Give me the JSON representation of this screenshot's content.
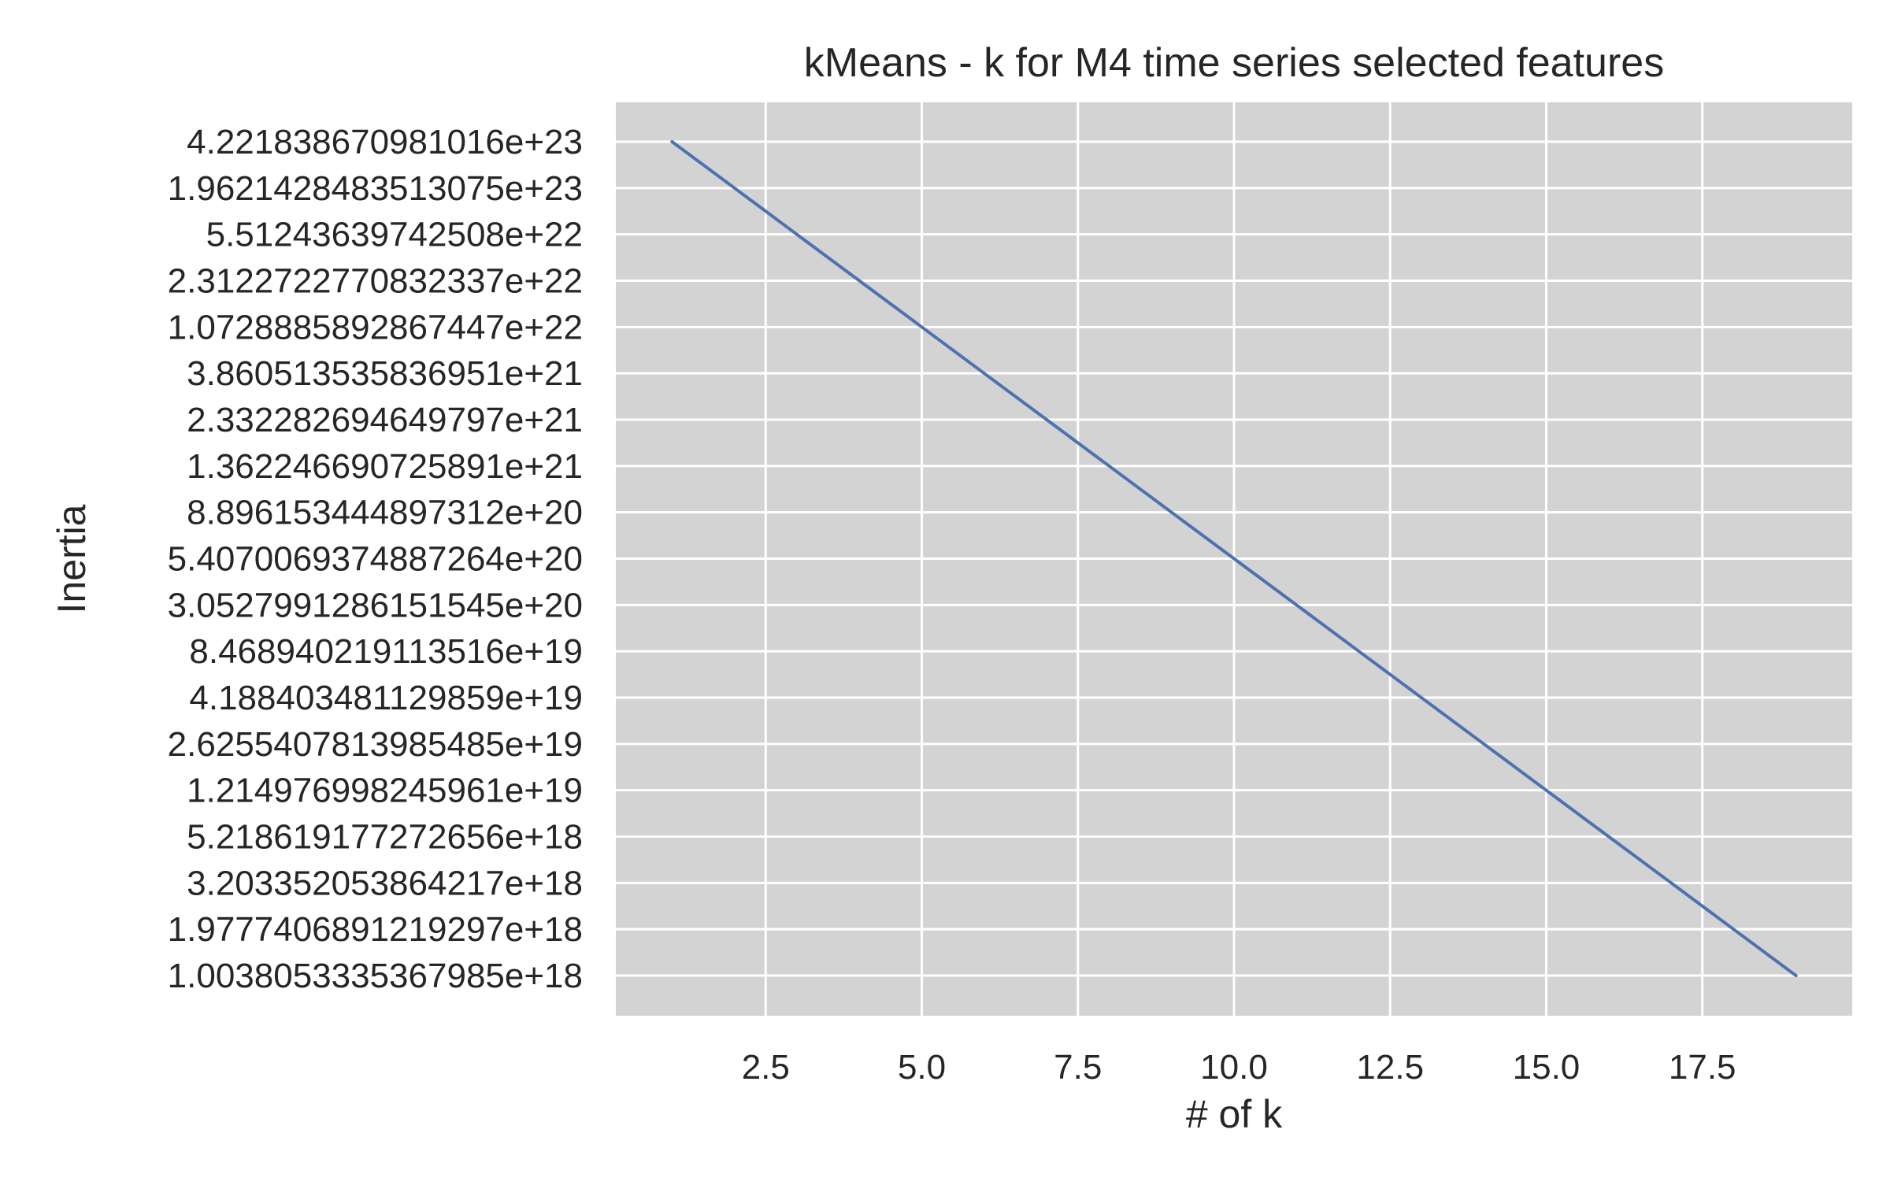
{
  "chart_data": {
    "type": "line",
    "title": "kMeans - k for M4 time series selected features",
    "xlabel": "# of k",
    "ylabel": "Inertia",
    "xlim": [
      0.1,
      19.9
    ],
    "x_ticks": [
      "2.5",
      "5.0",
      "7.5",
      "10.0",
      "12.5",
      "15.0",
      "17.5"
    ],
    "x_tick_values": [
      2.5,
      5.0,
      7.5,
      10.0,
      12.5,
      15.0,
      17.5
    ],
    "y_scale": "categorical",
    "y_ticks": [
      "4.221838670981016e+23",
      "1.9621428483513075e+23",
      "5.51243639742508e+22",
      "2.3122722770832337e+22",
      "1.0728885892867447e+22",
      "3.860513535836951e+21",
      "2.332282694649797e+21",
      "1.362246690725891e+21",
      "8.896153444897312e+20",
      "5.4070069374887264e+20",
      "3.0527991286151545e+20",
      "8.468940219113516e+19",
      "4.188403481129859e+19",
      "2.6255407813985485e+19",
      "1.214976998245961e+19",
      "5.218619177272656e+18",
      "3.203352053864217e+18",
      "1.9777406891219297e+18",
      "1.0038053335367985e+18"
    ],
    "x": [
      1,
      2,
      3,
      4,
      5,
      6,
      7,
      8,
      9,
      10,
      11,
      12,
      13,
      14,
      15,
      16,
      17,
      18,
      19
    ],
    "series": [
      {
        "values": [
          "4.221838670981016e+23",
          "1.9621428483513075e+23",
          "5.51243639742508e+22",
          "2.3122722770832337e+22",
          "1.0728885892867447e+22",
          "3.860513535836951e+21",
          "2.332282694649797e+21",
          "1.362246690725891e+21",
          "8.896153444897312e+20",
          "5.4070069374887264e+20",
          "3.0527991286151545e+20",
          "8.468940219113516e+19",
          "4.188403481129859e+19",
          "2.6255407813985485e+19",
          "1.214976998245961e+19",
          "5.218619177272656e+18",
          "3.203352053864217e+18",
          "1.9777406891219297e+18",
          "1.0038053335367985e+18"
        ],
        "color": "#4c72b0"
      }
    ],
    "grid": true,
    "legend": "none",
    "colors": {
      "plot_background": "#d3d3d3",
      "grid": "#ffffff",
      "line": "#4c72b0",
      "text": "#262626"
    }
  }
}
